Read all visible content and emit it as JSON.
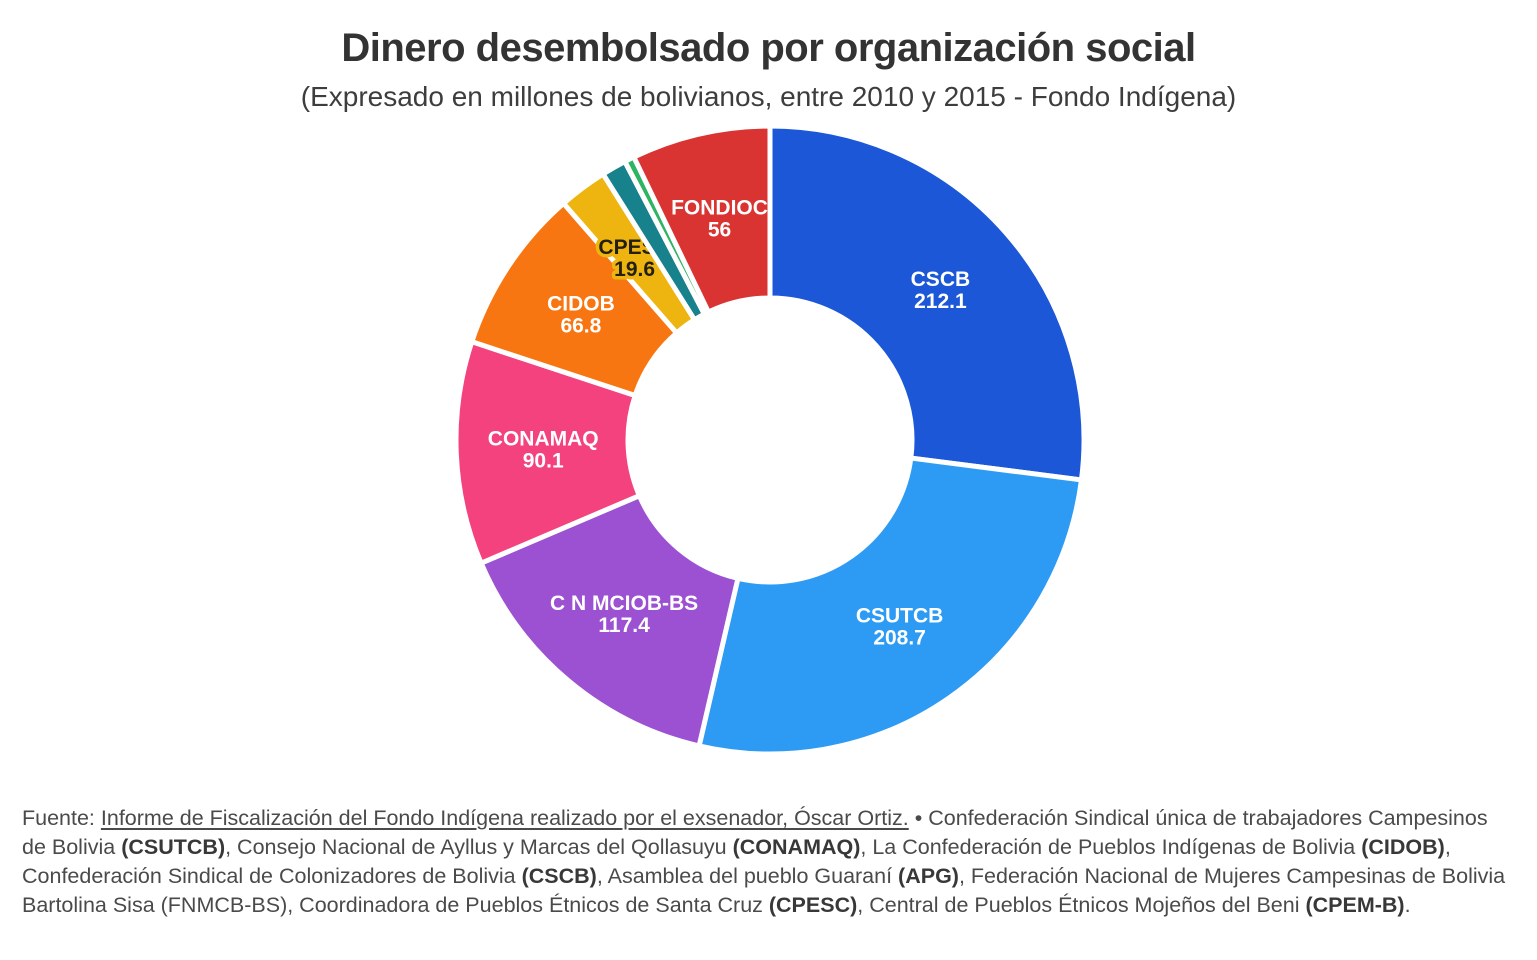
{
  "header": {
    "title": "Dinero desembolsado por organización social",
    "subtitle": "(Expresado en millones de bolivianos, entre 2010 y 2015 - Fondo Indígena)"
  },
  "chart_data": {
    "type": "pie",
    "variant": "donut",
    "title": "Dinero desembolsado por organización social",
    "subtitle": "(Expresado en millones de bolivianos, entre 2010 y 2015 - Fondo Indígena)",
    "unit": "millones de bolivianos",
    "start_angle_deg": 0,
    "direction": "clockwise",
    "inner_radius_ratio": 0.451,
    "series": [
      {
        "name": "CSCB",
        "value": 212.1,
        "display_value": "212.1",
        "color": "#1c57d8",
        "label_visible": true,
        "label_color": "#ffffff"
      },
      {
        "name": "CSUTCB",
        "value": 208.7,
        "display_value": "208.7",
        "color": "#2d9bf4",
        "label_visible": true,
        "label_color": "#ffffff"
      },
      {
        "name": "C N MCIOB-BS",
        "value": 117.4,
        "display_value": "117.4",
        "color": "#9b51d1",
        "label_visible": true,
        "label_color": "#ffffff"
      },
      {
        "name": "CONAMAQ",
        "value": 90.1,
        "display_value": "90.1",
        "color": "#f4427e",
        "label_visible": true,
        "label_color": "#ffffff"
      },
      {
        "name": "CIDOB",
        "value": 66.8,
        "display_value": "66.8",
        "color": "#f87612",
        "label_visible": true,
        "label_color": "#ffffff"
      },
      {
        "name": "CPESC",
        "value": 19.6,
        "display_value": "19.6",
        "color": "#eeb511",
        "label_visible": true,
        "label_color": "#24200f",
        "label_halo": "#eeb511"
      },
      {
        "name": "APG",
        "value": 10.0,
        "display_value": "",
        "color": "#17818c",
        "label_visible": false,
        "estimated": true
      },
      {
        "name": "CPEM-B",
        "value": 4.0,
        "display_value": "",
        "color": "#2fb463",
        "label_visible": false,
        "estimated": true
      },
      {
        "name": "FONDIOC",
        "value": 56,
        "display_value": "56",
        "color": "#d93431",
        "label_visible": true,
        "label_color": "#ffffff"
      }
    ]
  },
  "footer": {
    "segments": [
      {
        "text": "Fuente: ",
        "style": "plain"
      },
      {
        "text": "Informe de Fiscalización del Fondo Indígena realizado por el exsenador, Óscar Ortiz.",
        "style": "link"
      },
      {
        "text": " • Confederación Sindical única de trabajadores Campesinos de Bolivia ",
        "style": "plain"
      },
      {
        "text": "(CSUTCB)",
        "style": "bold"
      },
      {
        "text": ", Consejo Nacional de Ayllus y Marcas del Qollasuyu ",
        "style": "plain"
      },
      {
        "text": "(CONAMAQ)",
        "style": "bold"
      },
      {
        "text": ", La Confederación de Pueblos Indígenas de Bolivia ",
        "style": "plain"
      },
      {
        "text": "(CIDOB)",
        "style": "bold"
      },
      {
        "text": ", Confederación Sindical de Colonizadores de Bolivia ",
        "style": "plain"
      },
      {
        "text": "(CSCB)",
        "style": "bold"
      },
      {
        "text": ", Asamblea del pueblo Guaraní ",
        "style": "plain"
      },
      {
        "text": "(APG)",
        "style": "bold"
      },
      {
        "text": ", Federación Nacional de Mujeres Campesinas de Bolivia Bartolina Sisa (FNMCB-BS), Coordinadora de Pueblos Étnicos de Santa Cruz ",
        "style": "plain"
      },
      {
        "text": "(CPESC)",
        "style": "bold"
      },
      {
        "text": ", Central de Pueblos Étnicos Mojeños del Beni ",
        "style": "plain"
      },
      {
        "text": "(CPEM-B)",
        "style": "bold"
      },
      {
        "text": ".",
        "style": "plain"
      }
    ]
  }
}
